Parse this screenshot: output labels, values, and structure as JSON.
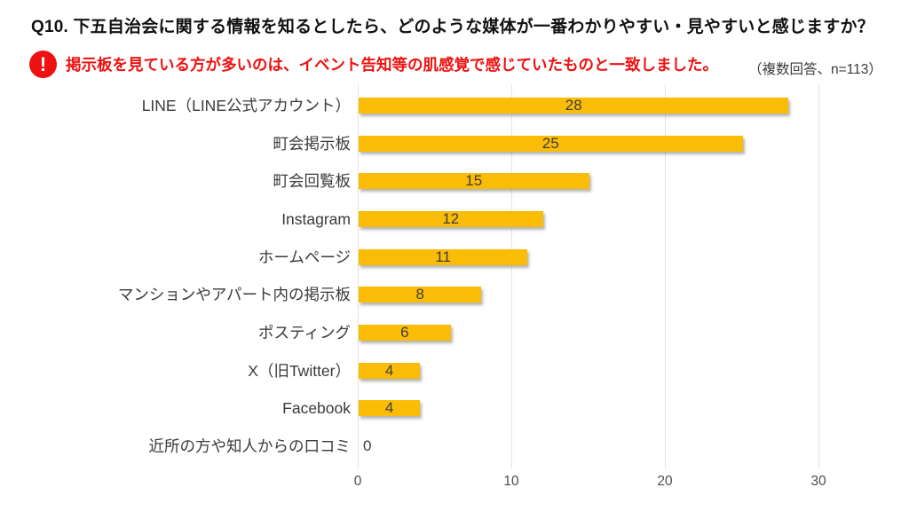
{
  "page": {
    "title": "Q10. 下五自治会に関する情報を知るとしたら、どのような媒体が一番わかりやすい・見やすいと感じますか？",
    "callout": {
      "icon_glyph": "!",
      "text": "掲示板を見ている方が多いのは、イベント告知等の肌感覚で感じていたものと一致しました。",
      "note": "（複数回答、n=113）"
    }
  },
  "colors": {
    "bar": "#FBBC05",
    "callout_red": "#EE1111",
    "grid": "#E4E4E4",
    "text": "#3A3A3A"
  },
  "chart_data": {
    "type": "bar",
    "orientation": "horizontal",
    "title": "Q10. 下五自治会に関する情報を知るとしたら、どのような媒体が一番わかりやすい・見やすいと感じますか？",
    "annotation": "掲示板を見ている方が多いのは、イベント告知等の肌感覚で感じていたものと一致しました。",
    "note": "（複数回答、n=113）",
    "categories": [
      "LINE（LINE公式アカウント）",
      "町会掲示板",
      "町会回覧板",
      "Instagram",
      "ホームページ",
      "マンションやアパート内の掲示板",
      "ポスティング",
      "X（旧Twitter）",
      "Facebook",
      "近所の方や知人からの口コミ"
    ],
    "values": [
      28,
      25,
      15,
      12,
      11,
      8,
      6,
      4,
      4,
      0
    ],
    "x_ticks": [
      0,
      10,
      20,
      30
    ],
    "xlim": [
      0,
      31
    ],
    "grid": true,
    "legend": "none",
    "value_labels": "inside-center"
  }
}
